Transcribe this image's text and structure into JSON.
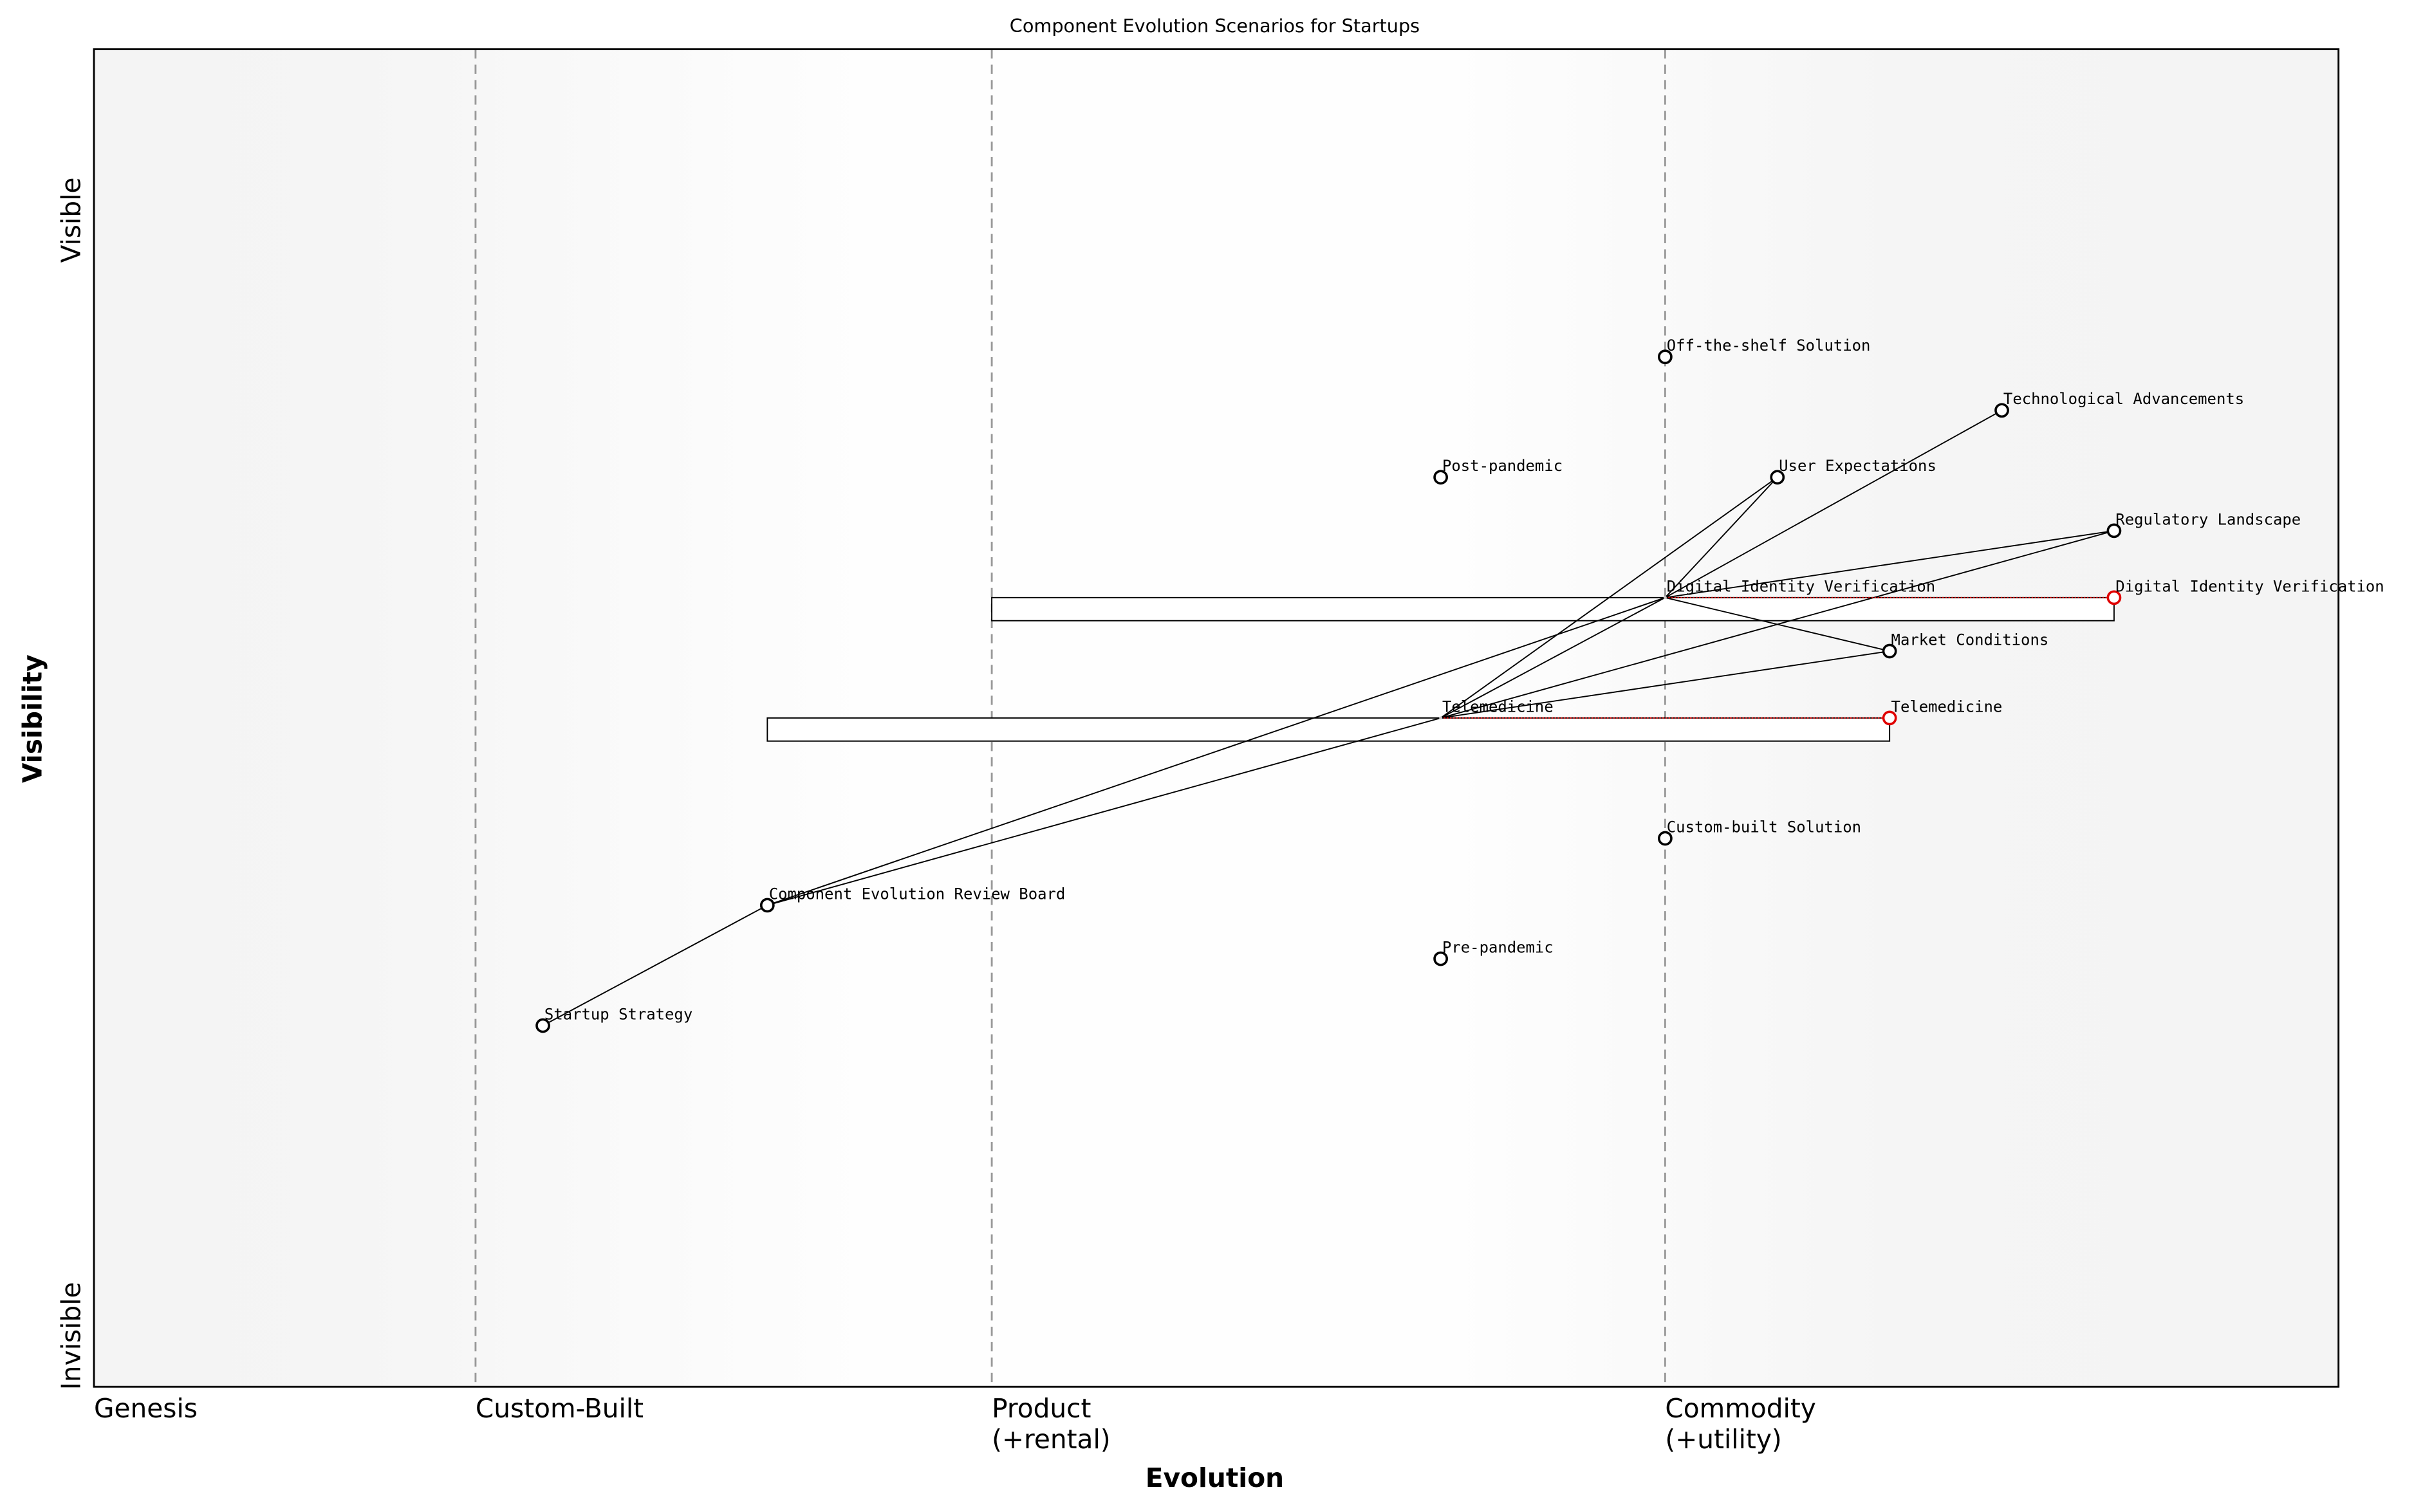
{
  "chart_data": {
    "type": "wardley",
    "title": "Component Evolution Scenarios for Startups",
    "xlabel": "Evolution",
    "ylabel": "Visibility",
    "y_top_label": "Visible",
    "y_bottom_label": "Invisible",
    "xlim": [
      0,
      1
    ],
    "ylim": [
      0,
      1
    ],
    "stages": [
      {
        "label": [
          "Genesis"
        ],
        "x": 0
      },
      {
        "label": [
          "Custom-Built"
        ],
        "x": 0.17
      },
      {
        "label": [
          "Product",
          "(+rental)"
        ],
        "x": 0.4
      },
      {
        "label": [
          "Commodity",
          "(+utility)"
        ],
        "x": 0.7
      }
    ],
    "components": [
      {
        "name": "Off-the-shelf Solution",
        "x": 0.7,
        "y": 0.77
      },
      {
        "name": "Technological Advancements",
        "x": 0.85,
        "y": 0.73
      },
      {
        "name": "Post-pandemic",
        "x": 0.6,
        "y": 0.68
      },
      {
        "name": "User Expectations",
        "x": 0.75,
        "y": 0.68
      },
      {
        "name": "Regulatory Landscape",
        "x": 0.9,
        "y": 0.64
      },
      {
        "name": "Digital Identity Verification",
        "x": 0.7,
        "y": 0.59,
        "evolve_to": 0.9,
        "pipeline": [
          0.4,
          0.9
        ]
      },
      {
        "name": "Market Conditions",
        "x": 0.8,
        "y": 0.55
      },
      {
        "name": "Telemedicine",
        "x": 0.6,
        "y": 0.5,
        "evolve_to": 0.8,
        "pipeline": [
          0.3,
          0.8
        ]
      },
      {
        "name": "Custom-built Solution",
        "x": 0.7,
        "y": 0.41
      },
      {
        "name": "Component Evolution Review Board",
        "x": 0.3,
        "y": 0.36
      },
      {
        "name": "Pre-pandemic",
        "x": 0.6,
        "y": 0.32
      },
      {
        "name": "Startup Strategy",
        "x": 0.2,
        "y": 0.27
      }
    ],
    "evolve_color": "#e00000",
    "links": [
      [
        "Startup Strategy",
        "Component Evolution Review Board"
      ],
      [
        "Component Evolution Review Board",
        "Digital Identity Verification"
      ],
      [
        "Component Evolution Review Board",
        "Telemedicine"
      ],
      [
        "Telemedicine",
        "User Expectations"
      ],
      [
        "Telemedicine",
        "Regulatory Landscape"
      ],
      [
        "Telemedicine",
        "Market Conditions"
      ],
      [
        "Telemedicine",
        "Digital Identity Verification"
      ],
      [
        "Digital Identity Verification",
        "User Expectations"
      ],
      [
        "Digital Identity Verification",
        "Technological Advancements"
      ],
      [
        "Digital Identity Verification",
        "Regulatory Landscape"
      ],
      [
        "Digital Identity Verification",
        "Market Conditions"
      ]
    ]
  }
}
